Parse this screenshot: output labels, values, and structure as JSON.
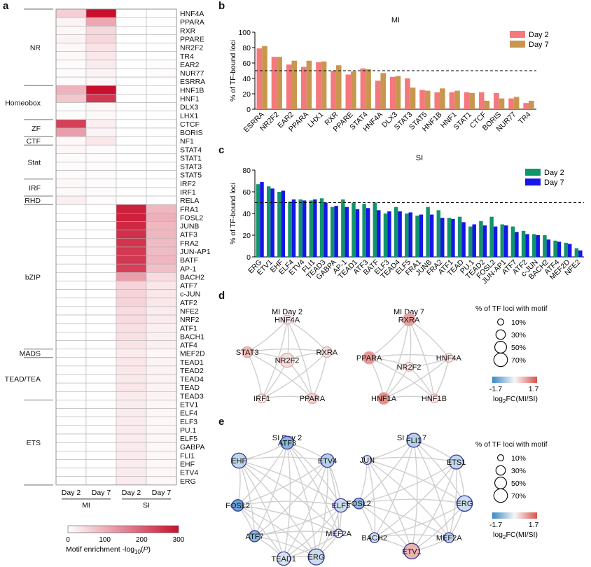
{
  "panels": {
    "a": "a",
    "b": "b",
    "c": "c",
    "d": "d",
    "e": "e"
  },
  "heatmap": {
    "columns": [
      "Day 2",
      "Day 7",
      "Day 2",
      "Day 7"
    ],
    "column_groups": [
      "MI",
      "SI"
    ],
    "rows": [
      "HNF4A",
      "PPARA",
      "RXR",
      "PPARE",
      "NR2F2",
      "TR4",
      "EAR2",
      "NUR77",
      "ESRRA",
      "HNF1B",
      "HNF1",
      "DLX3",
      "LHX1",
      "CTCF",
      "BORIS",
      "NF1",
      "STAT4",
      "STAT1",
      "STAT3",
      "STAT5",
      "IRF2",
      "IRF1",
      "RELA",
      "FRA1",
      "FOSL2",
      "JUNB",
      "ATF3",
      "FRA2",
      "JUN-AP1",
      "BATF",
      "AP-1",
      "BACH2",
      "ATF7",
      "c-JUN",
      "ATF2",
      "NFE2",
      "NRF2",
      "ATF1",
      "BACH1",
      "ATF4",
      "MEF2D",
      "TEAD1",
      "TEAD2",
      "TEAD4",
      "TEAD",
      "TEAD3",
      "ETV1",
      "ELF4",
      "ELF3",
      "PU.1",
      "ELF5",
      "GABPA",
      "FLI1",
      "EHF",
      "ETV4",
      "ERG"
    ],
    "families": [
      {
        "name": "NR",
        "start": 0,
        "end": 8
      },
      {
        "name": "Homeobox",
        "start": 9,
        "end": 12
      },
      {
        "name": "ZF",
        "start": 13,
        "end": 14
      },
      {
        "name": "CTF",
        "start": 15,
        "end": 15
      },
      {
        "name": "Stat",
        "start": 16,
        "end": 19
      },
      {
        "name": "IRF",
        "start": 20,
        "end": 21
      },
      {
        "name": "RHD",
        "start": 22,
        "end": 22
      },
      {
        "name": "bZIP",
        "start": 23,
        "end": 39
      },
      {
        "name": "MADS",
        "start": 40,
        "end": 40
      },
      {
        "name": "TEAD/TEA",
        "start": 41,
        "end": 45
      },
      {
        "name": "ETS",
        "start": 46,
        "end": 55
      }
    ],
    "values": [
      [
        60,
        300,
        0,
        0
      ],
      [
        15,
        110,
        0,
        0
      ],
      [
        10,
        50,
        0,
        0
      ],
      [
        15,
        50,
        0,
        0
      ],
      [
        10,
        35,
        0,
        0
      ],
      [
        8,
        30,
        0,
        0
      ],
      [
        5,
        25,
        0,
        3
      ],
      [
        5,
        15,
        0,
        5
      ],
      [
        5,
        10,
        0,
        0
      ],
      [
        95,
        310,
        0,
        0
      ],
      [
        70,
        250,
        0,
        0
      ],
      [
        3,
        10,
        0,
        0
      ],
      [
        5,
        8,
        0,
        0
      ],
      [
        240,
        20,
        0,
        0
      ],
      [
        120,
        15,
        0,
        0
      ],
      [
        10,
        30,
        0,
        0
      ],
      [
        10,
        5,
        0,
        0
      ],
      [
        5,
        5,
        0,
        0
      ],
      [
        5,
        5,
        0,
        0
      ],
      [
        5,
        5,
        0,
        0
      ],
      [
        10,
        5,
        0,
        0
      ],
      [
        8,
        5,
        0,
        0
      ],
      [
        20,
        5,
        0,
        0
      ],
      [
        0,
        0,
        280,
        90
      ],
      [
        0,
        0,
        280,
        100
      ],
      [
        0,
        0,
        270,
        90
      ],
      [
        0,
        0,
        260,
        90
      ],
      [
        0,
        0,
        255,
        85
      ],
      [
        0,
        0,
        250,
        85
      ],
      [
        0,
        0,
        250,
        90
      ],
      [
        0,
        0,
        240,
        80
      ],
      [
        0,
        0,
        120,
        45
      ],
      [
        0,
        0,
        55,
        30
      ],
      [
        0,
        0,
        55,
        30
      ],
      [
        0,
        0,
        55,
        30
      ],
      [
        0,
        0,
        45,
        25
      ],
      [
        0,
        0,
        45,
        25
      ],
      [
        0,
        0,
        40,
        20
      ],
      [
        0,
        0,
        40,
        20
      ],
      [
        0,
        0,
        35,
        20
      ],
      [
        0,
        0,
        25,
        10
      ],
      [
        0,
        0,
        30,
        15
      ],
      [
        0,
        0,
        30,
        15
      ],
      [
        0,
        0,
        28,
        15
      ],
      [
        0,
        0,
        30,
        15
      ],
      [
        0,
        0,
        25,
        15
      ],
      [
        0,
        0,
        25,
        10
      ],
      [
        0,
        0,
        25,
        10
      ],
      [
        0,
        0,
        25,
        10
      ],
      [
        0,
        0,
        25,
        10
      ],
      [
        0,
        0,
        25,
        10
      ],
      [
        0,
        0,
        25,
        10
      ],
      [
        0,
        0,
        25,
        10
      ],
      [
        0,
        0,
        25,
        10
      ],
      [
        0,
        0,
        25,
        10
      ],
      [
        0,
        0,
        25,
        10
      ]
    ],
    "colorbar": {
      "ticks": [
        "0",
        "100",
        "200",
        "300"
      ],
      "label_prefix": "Motif enrichment -log",
      "label_sub": "10",
      "label_suffix": "(",
      "label_italic": "P",
      "label_end": ")",
      "min": 0,
      "max": 300,
      "color_low": "#ffffff",
      "color_high": "#c8102e"
    }
  },
  "chart_data": [
    {
      "type": "bar",
      "panel": "b",
      "title": "MI",
      "ylabel": "% of TF-bound loci",
      "ylim": [
        0,
        100
      ],
      "yticks": [
        0,
        20,
        40,
        60,
        80,
        100
      ],
      "reference_line": 50,
      "categories": [
        "ESRRA",
        "NR2F2",
        "EAR2",
        "PPARA",
        "LHX1",
        "RXR",
        "PPARE",
        "STAT4",
        "HNF4A",
        "DLX3",
        "STAT3",
        "STAT5",
        "HNF1B",
        "HNF1",
        "STAT1",
        "CTCF",
        "BORIS",
        "NUR77",
        "TR4"
      ],
      "series": [
        {
          "name": "Day 2",
          "color": "#f4787c",
          "values": [
            79,
            68,
            58,
            55,
            61,
            50,
            45,
            53,
            37,
            42,
            40,
            25,
            22,
            22,
            22,
            22,
            21,
            14,
            8
          ]
        },
        {
          "name": "Day 7",
          "color": "#c8974f",
          "values": [
            82,
            68,
            63,
            63,
            62,
            57,
            49,
            52,
            47,
            43,
            28,
            24,
            27,
            24,
            21,
            11,
            14,
            16,
            11
          ]
        }
      ]
    },
    {
      "type": "bar",
      "panel": "c",
      "title": "SI",
      "ylabel": "% of TF-bound loci",
      "ylim": [
        0,
        80
      ],
      "yticks": [
        0,
        20,
        40,
        60,
        80
      ],
      "reference_line": 50,
      "categories": [
        "ERG",
        "ETV1",
        "EHF",
        "ELF4",
        "ETV4",
        "FLI1",
        "TEAD3",
        "GABPA",
        "AP-1",
        "TEAD1",
        "ATF3",
        "BATF",
        "ELF3",
        "TEAD4",
        "ELF5",
        "FRA1",
        "JUNB",
        "FRA2",
        "ATF1",
        "TEAD",
        "PU.1",
        "TEAD2",
        "FOSL2",
        "JUN-AP1",
        "ATF7",
        "ATF2",
        "c-JUN",
        "BACH2",
        "ATF4",
        "MEF2D",
        "NFE2"
      ],
      "series": [
        {
          "name": "Day 2",
          "color": "#10956b",
          "values": [
            67,
            65,
            60,
            51,
            53,
            52,
            54,
            46,
            53,
            50,
            49,
            50,
            40,
            46,
            40,
            38,
            46,
            43,
            36,
            37,
            28,
            33,
            37,
            30,
            28,
            24,
            21,
            20,
            15,
            13,
            8
          ]
        },
        {
          "name": "Day 7",
          "color": "#1616e8",
          "values": [
            69,
            63,
            61,
            53,
            52,
            53,
            50,
            47,
            46,
            44,
            45,
            43,
            42,
            42,
            41,
            39,
            39,
            36,
            35,
            32,
            30,
            29,
            28,
            29,
            23,
            21,
            20,
            16,
            14,
            12,
            6
          ]
        }
      ]
    }
  ],
  "network_d": {
    "graphs": [
      {
        "title": "MI Day 2",
        "nodes": [
          {
            "label": "HNF4A",
            "value": 0.1,
            "pct": 10
          },
          {
            "label": "STAT3",
            "value": 0.6,
            "pct": 20
          },
          {
            "label": "NR2F2",
            "value": 0.25,
            "pct": 45
          },
          {
            "label": "RXRA",
            "value": 0.2,
            "pct": 18
          },
          {
            "label": "IRF1",
            "value": 0.05,
            "pct": 10
          },
          {
            "label": "PPARA",
            "value": 0.4,
            "pct": 18
          }
        ]
      },
      {
        "title": "MI Day 7",
        "nodes": [
          {
            "label": "RXRA",
            "value": 0.9,
            "pct": 30
          },
          {
            "label": "PPARA",
            "value": 1.0,
            "pct": 30
          },
          {
            "label": "HNF4A",
            "value": 0.05,
            "pct": 10
          },
          {
            "label": "NR2F2",
            "value": 0.05,
            "pct": 10
          },
          {
            "label": "HNF1A",
            "value": 1.1,
            "pct": 25
          },
          {
            "label": "HNF1B",
            "value": 0.1,
            "pct": 10
          }
        ]
      }
    ]
  },
  "network_e": {
    "graphs": [
      {
        "title": "SI Day 2",
        "nodes": [
          {
            "label": "ATF3",
            "value": -1.0,
            "pct": 35
          },
          {
            "label": "EHF",
            "value": -0.5,
            "pct": 55
          },
          {
            "label": "ETV4",
            "value": -0.6,
            "pct": 40
          },
          {
            "label": "FOSL2",
            "value": -1.3,
            "pct": 25
          },
          {
            "label": "ELF3",
            "value": -0.4,
            "pct": 40
          },
          {
            "label": "ATF7",
            "value": -1.0,
            "pct": 22
          },
          {
            "label": "MEF2A",
            "value": 0.0,
            "pct": 8
          },
          {
            "label": "TEAD1",
            "value": -0.3,
            "pct": 40
          },
          {
            "label": "ERG",
            "value": -0.4,
            "pct": 65
          }
        ]
      },
      {
        "title": "SI Day 7",
        "nodes": [
          {
            "label": "FLI1",
            "value": -0.6,
            "pct": 45
          },
          {
            "label": "JUN",
            "value": -0.2,
            "pct": 10
          },
          {
            "label": "ETS1",
            "value": -0.5,
            "pct": 45
          },
          {
            "label": "FOSL2",
            "value": -0.9,
            "pct": 20
          },
          {
            "label": "ERG",
            "value": -0.4,
            "pct": 60
          },
          {
            "label": "BACH2",
            "value": -0.3,
            "pct": 15
          },
          {
            "label": "MEF2A",
            "value": -0.5,
            "pct": 15
          },
          {
            "label": "ETV1",
            "value": 0.7,
            "pct": 60
          }
        ]
      }
    ]
  },
  "size_legend": {
    "title": "% of TF loci with motif",
    "entries": [
      "10%",
      "30%",
      "50%",
      "70%"
    ]
  },
  "fc_legend": {
    "min": "-1.7",
    "max": "1.7",
    "label_prefix": "log",
    "label_sub": "2",
    "label_suffix": "FC(MI/SI)",
    "color_low": "#3b89c4",
    "color_mid": "#f7f7f7",
    "color_high": "#d9544d"
  }
}
